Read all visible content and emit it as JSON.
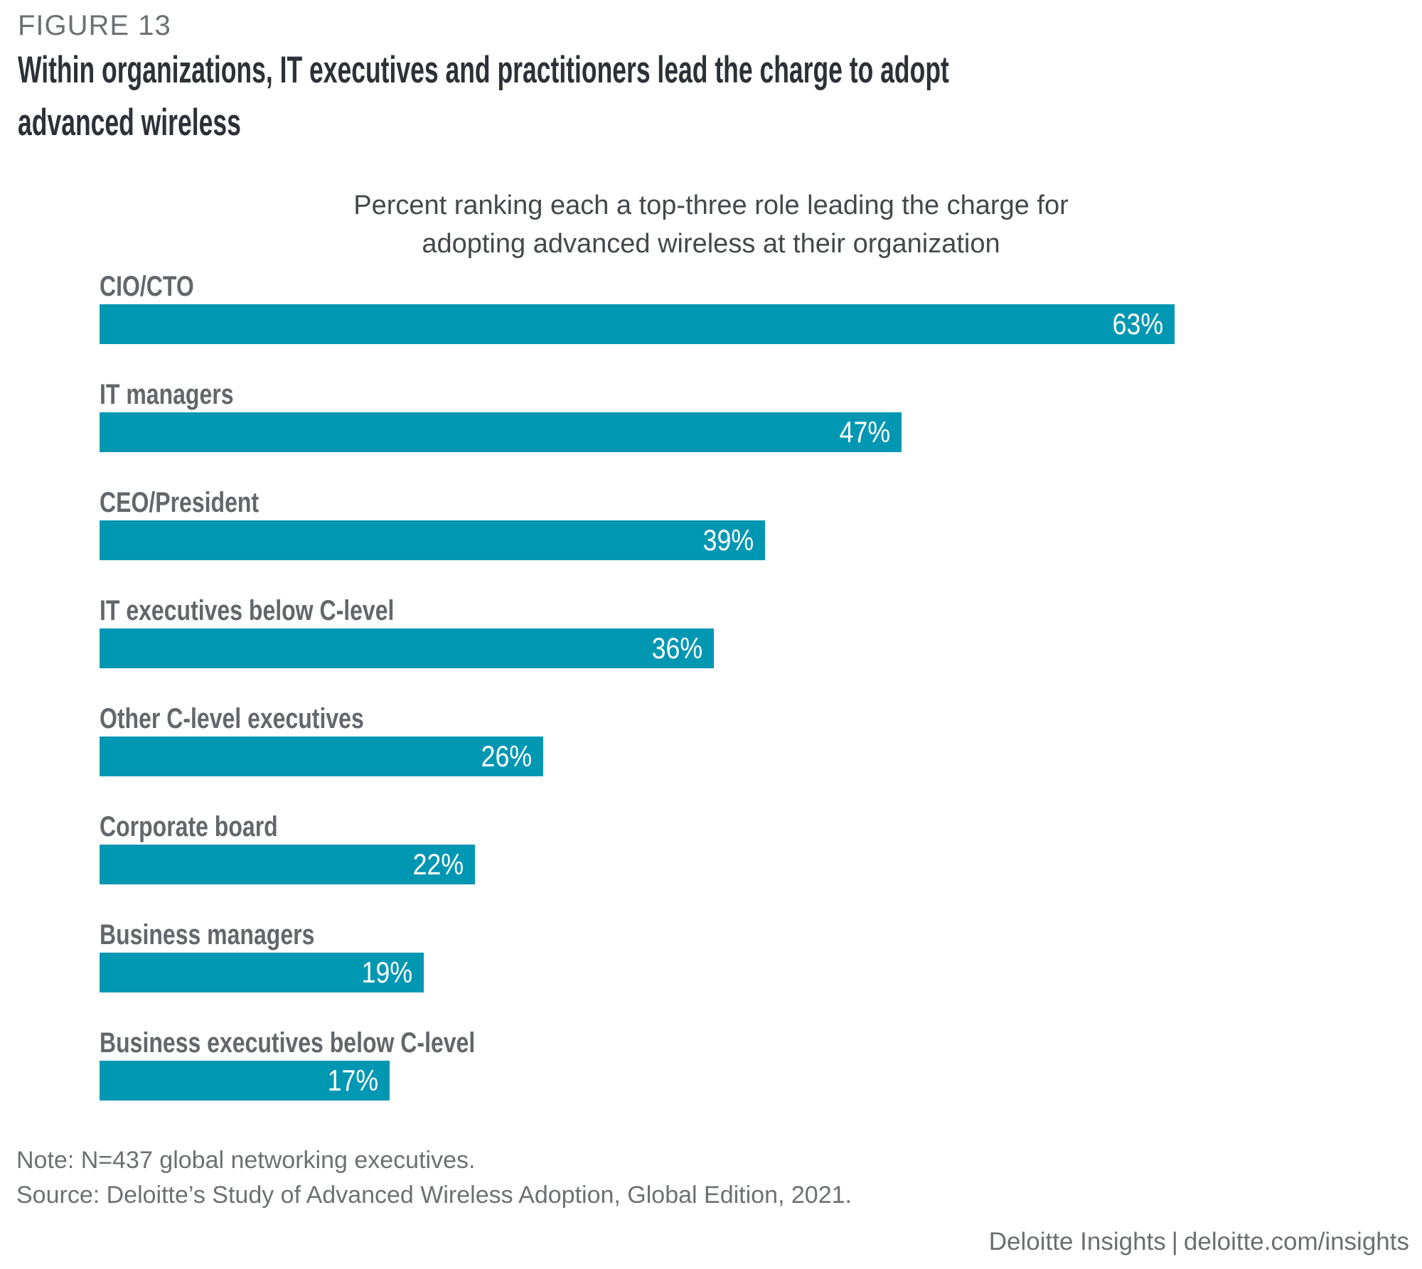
{
  "figure_label": "FIGURE 13",
  "title": "Within organizations, IT executives and practitioners lead the charge to adopt advanced wireless",
  "title_lines": [
    "Within organizations, IT executives and practitioners lead the charge to adopt",
    "advanced wireless"
  ],
  "chart_data": {
    "type": "bar",
    "orientation": "horizontal",
    "title": "Percent ranking each a top-three role leading the charge for adopting advanced wireless at their organization",
    "title_lines": [
      "Percent ranking each a top-three role leading the charge for",
      "adopting advanced wireless at their organization"
    ],
    "categories": [
      "CIO/CTO",
      "IT managers",
      "CEO/President",
      "IT executives below C-level",
      "Other C-level executives",
      "Corporate board",
      "Business managers",
      "Business executives below C-level"
    ],
    "values": [
      63,
      47,
      39,
      36,
      26,
      22,
      19,
      17
    ],
    "unit": "%",
    "value_labels": [
      "63%",
      "47%",
      "39%",
      "36%",
      "26%",
      "22%",
      "19%",
      "17%"
    ],
    "bar_color": "#0097b2",
    "value_label_color": "#ffffff",
    "value_label_position": "inside-end",
    "category_label_position": "above-bar",
    "axes_hidden": true,
    "grid": false,
    "legend": false,
    "xlim": [
      0,
      63
    ]
  },
  "note": "Note: N=437 global networking executives.",
  "source": "Source: Deloitte’s Study of Advanced Wireless Adoption, Global Edition, 2021.",
  "footer": {
    "brand": "Deloitte Insights",
    "divider": "|",
    "url": "deloitte.com/insights"
  },
  "colors": {
    "bar": "#0097b2",
    "title_text": "#2d3137",
    "category_label_text": "#63666a",
    "subtitle_text": "#44484c",
    "muted_text": "#6d7073",
    "value_text": "#ffffff",
    "background": "#ffffff"
  }
}
